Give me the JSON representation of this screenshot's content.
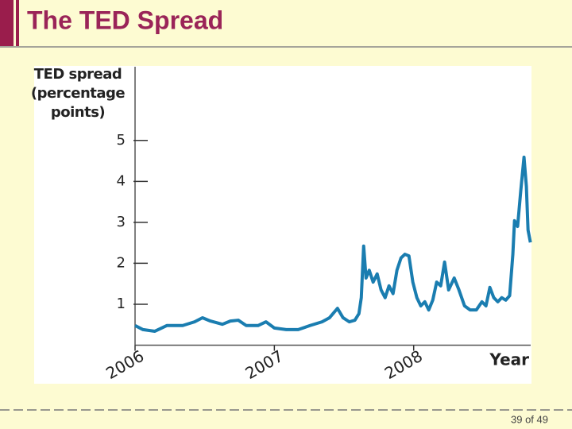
{
  "title": "The TED Spread",
  "footer": "39 of 49",
  "chart_data": {
    "type": "line",
    "ylabel": "TED spread (percentage points)",
    "xlabel": "Year",
    "xlim": [
      2006,
      2008.84
    ],
    "xticks": [
      2006,
      2007,
      2008
    ],
    "ylim": [
      0,
      6.8
    ],
    "yticks": [
      1,
      2,
      3,
      4,
      5
    ],
    "series": [
      {
        "name": "TED spread",
        "color": "#1a7db0",
        "x": [
          2006,
          2006.057,
          2006.142,
          2006.228,
          2006.342,
          2006.427,
          2006.484,
          2006.541,
          2006.627,
          2006.684,
          2006.741,
          2006.798,
          2006.883,
          2006.94,
          2007.0,
          2007.085,
          2007.171,
          2007.256,
          2007.342,
          2007.396,
          2007.453,
          2007.493,
          2007.538,
          2007.578,
          2007.607,
          2007.624,
          2007.641,
          2007.658,
          2007.681,
          2007.709,
          2007.738,
          2007.766,
          2007.795,
          2007.823,
          2007.852,
          2007.88,
          2007.909,
          2007.937,
          2007.966,
          2007.994,
          2008.023,
          2008.051,
          2008.08,
          2008.108,
          2008.137,
          2008.165,
          2008.194,
          2008.222,
          2008.251,
          2008.291,
          2008.325,
          2008.365,
          2008.405,
          2008.45,
          2008.49,
          2008.519,
          2008.547,
          2008.575,
          2008.604,
          2008.632,
          2008.661,
          2008.689,
          2008.712,
          2008.724,
          2008.746,
          2008.769,
          2008.792,
          2008.809,
          2008.821,
          2008.838
        ],
        "values": [
          0.48,
          0.38,
          0.34,
          0.48,
          0.48,
          0.57,
          0.67,
          0.59,
          0.51,
          0.59,
          0.61,
          0.48,
          0.48,
          0.57,
          0.42,
          0.38,
          0.38,
          0.48,
          0.57,
          0.67,
          0.9,
          0.67,
          0.57,
          0.61,
          0.77,
          1.16,
          2.42,
          1.64,
          1.83,
          1.54,
          1.74,
          1.35,
          1.16,
          1.45,
          1.26,
          1.83,
          2.13,
          2.22,
          2.18,
          1.54,
          1.16,
          0.96,
          1.06,
          0.86,
          1.1,
          1.54,
          1.45,
          2.03,
          1.35,
          1.64,
          1.35,
          0.96,
          0.86,
          0.86,
          1.06,
          0.96,
          1.41,
          1.16,
          1.06,
          1.16,
          1.1,
          1.21,
          2.22,
          3.04,
          2.9,
          3.78,
          4.59,
          3.88,
          2.81,
          2.51
        ]
      }
    ]
  }
}
